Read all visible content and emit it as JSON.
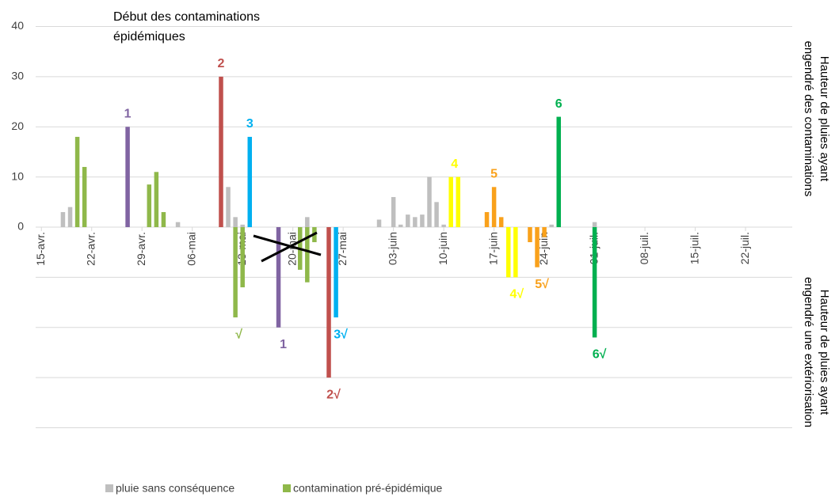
{
  "chart_data": {
    "type": "bar",
    "annotation_lines": [
      "Début des contaminations",
      "épidémiques"
    ],
    "y_label_top": [
      "Hauteur de pluies ayant",
      "engendré des contaminations"
    ],
    "y_label_bottom": [
      "Hauteur de pluies ayant",
      "engendré une extériorisation"
    ],
    "ylim": [
      -40,
      40
    ],
    "yticks": [
      0,
      10,
      20,
      30,
      40
    ],
    "unlabeled_gridlines": [
      -40,
      -30,
      -20,
      -10
    ],
    "grid": true,
    "xlim": [
      -0.8,
      104.5
    ],
    "xticks": [
      {
        "value": 0,
        "label": "15-avr."
      },
      {
        "value": 7,
        "label": "22-avr."
      },
      {
        "value": 14,
        "label": "29-avr."
      },
      {
        "value": 21,
        "label": "06-mai"
      },
      {
        "value": 28,
        "label": "13-mai"
      },
      {
        "value": 35,
        "label": "20-mai"
      },
      {
        "value": 42,
        "label": "27-mai"
      },
      {
        "value": 49,
        "label": "03-juin"
      },
      {
        "value": 56,
        "label": "10-juin"
      },
      {
        "value": 63,
        "label": "17-juin"
      },
      {
        "value": 70,
        "label": "24-juin"
      },
      {
        "value": 77,
        "label": "01-juil."
      },
      {
        "value": 84,
        "label": "08-juil."
      },
      {
        "value": 91,
        "label": "15-juil."
      },
      {
        "value": 98,
        "label": "22-juil."
      }
    ],
    "series": [
      {
        "name": "pluie sans conséquence",
        "color": "#bfbfbf",
        "x": [
          3,
          4,
          19,
          26,
          27,
          28,
          37,
          47,
          49,
          50,
          51,
          52,
          53,
          54,
          55,
          56,
          71,
          77
        ],
        "values": [
          3,
          4,
          1,
          8,
          2,
          0.5,
          2,
          1.5,
          6,
          0.5,
          2.5,
          2,
          2.5,
          10,
          5,
          0.5,
          0.5,
          1
        ]
      },
      {
        "name": "contamination pré-épidémique",
        "color": "#8fb84a",
        "x": [
          5,
          6,
          15,
          16,
          17,
          27,
          28,
          36,
          37,
          38
        ],
        "values": [
          18,
          12,
          8.5,
          11,
          3,
          -18,
          -12,
          -8.5,
          -11,
          -3
        ],
        "annotation": "√"
      }
    ],
    "events": [
      {
        "color": "#8064a2",
        "x": [
          12,
          33
        ],
        "values": [
          20,
          -20
        ],
        "labels": [
          "1",
          "1"
        ]
      },
      {
        "color": "#c0504d",
        "x": [
          25,
          40
        ],
        "values": [
          30,
          -30
        ],
        "labels": [
          "2",
          "2√"
        ]
      },
      {
        "color": "#00b0f0",
        "x": [
          29,
          41
        ],
        "values": [
          18,
          -18
        ],
        "labels": [
          "3",
          "3√"
        ]
      },
      {
        "color": "#ffff00",
        "x": [
          57,
          58,
          65,
          66
        ],
        "values": [
          10,
          10,
          -10,
          -10
        ],
        "labels": [
          "4",
          "4√"
        ]
      },
      {
        "color": "#f9a11b",
        "x": [
          62,
          63,
          64,
          68,
          69,
          70
        ],
        "values": [
          3,
          8,
          2,
          -3,
          -8,
          -2
        ],
        "labels": [
          "5",
          "5√"
        ]
      },
      {
        "color": "#00b050",
        "x": [
          72,
          77
        ],
        "values": [
          22,
          -22
        ],
        "labels": [
          "6",
          "6√"
        ]
      }
    ]
  }
}
